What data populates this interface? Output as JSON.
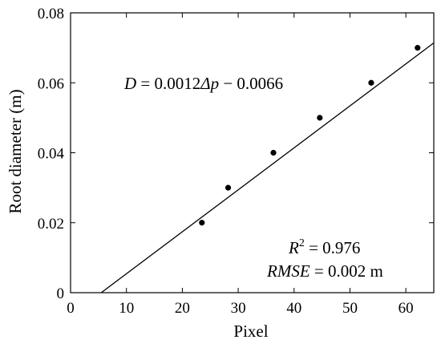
{
  "chart_data": {
    "type": "scatter",
    "xlabel": "Pixel",
    "ylabel": "Root diameter (m)",
    "xlim": [
      0,
      65
    ],
    "ylim": [
      0,
      0.08
    ],
    "xticks": [
      0,
      10,
      20,
      30,
      40,
      50,
      60
    ],
    "yticks": [
      0,
      0.02,
      0.04,
      0.06,
      0.08
    ],
    "xtick_labels": [
      "0",
      "10",
      "20",
      "30",
      "40",
      "50",
      "60"
    ],
    "ytick_labels": [
      "0",
      "0.02",
      "0.04",
      "0.06",
      "0.08"
    ],
    "grid": false,
    "points": [
      {
        "x": 23.5,
        "y": 0.02
      },
      {
        "x": 28.2,
        "y": 0.03
      },
      {
        "x": 36.3,
        "y": 0.04
      },
      {
        "x": 44.6,
        "y": 0.05
      },
      {
        "x": 53.8,
        "y": 0.06
      },
      {
        "x": 62.1,
        "y": 0.07
      }
    ],
    "fit": {
      "slope": 0.0012,
      "intercept": -0.0066
    },
    "annotations": {
      "equation": {
        "D": "D",
        "eq1": " = 0.0012",
        "delta": "Δp",
        "eq2": " − 0.0066"
      },
      "r2": {
        "R": "R",
        "sup": "2",
        "rest": " = 0.976"
      },
      "rmse": {
        "name": "RMSE",
        "rest": " = 0.002 m"
      }
    }
  }
}
